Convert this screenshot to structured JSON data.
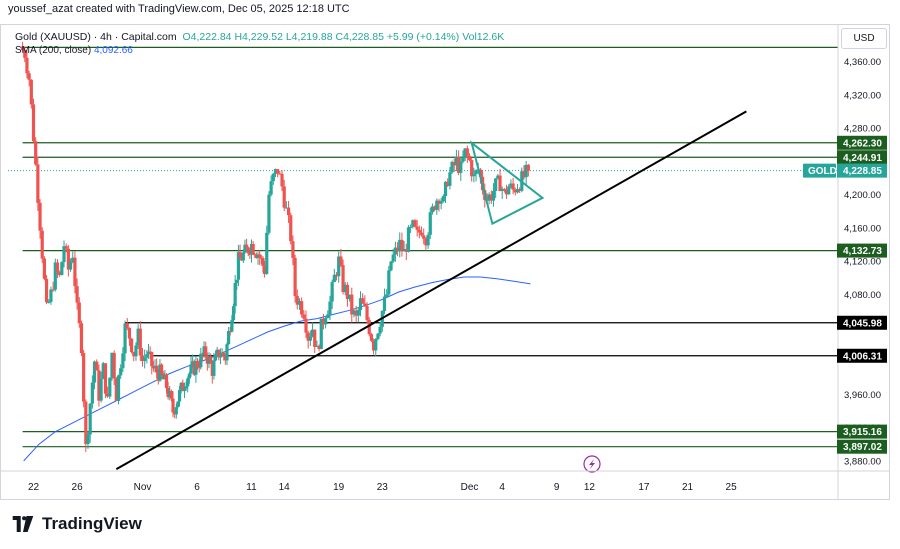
{
  "header": {
    "attribution": "youssef_azat created with TradingView.com, Dec 05, 2025 12:18 UTC"
  },
  "legend": {
    "symbol": "Gold (XAUUSD) · 4h · Capital.com",
    "o": "O4,222.84",
    "h": "H4,229.52",
    "l": "L4,219.88",
    "c": "C4,228.85",
    "change": "+5.99 (+0.14%)",
    "vol": "Vol12.6K",
    "sma_label": "SMA (200, close)",
    "sma_value": "4,092.66"
  },
  "currency": "USD",
  "footer": {
    "brand": "TradingView"
  },
  "chart_data": {
    "type": "candlestick",
    "symbol": "Gold (XAUUSD)",
    "timeframe": "4h",
    "currency": "USD",
    "ylim": [
      3860,
      4390
    ],
    "y_ticks": [
      "4,360.00",
      "4,320.00",
      "4,280.00",
      "4,240.00",
      "4,200.00",
      "4,160.00",
      "4,120.00",
      "4,080.00",
      "3,960.00",
      "3,920.00",
      "3,880.00"
    ],
    "y_tick_values": [
      4360,
      4320,
      4280,
      4240,
      4200,
      4160,
      4120,
      4080,
      3960,
      3920,
      3880
    ],
    "x_ticks": [
      {
        "label": "22",
        "day": 22
      },
      {
        "label": "26",
        "day": 26
      },
      {
        "label": "Nov",
        "day": 32
      },
      {
        "label": "6",
        "day": 37
      },
      {
        "label": "11",
        "day": 42
      },
      {
        "label": "14",
        "day": 45
      },
      {
        "label": "19",
        "day": 50
      },
      {
        "label": "23",
        "day": 54
      },
      {
        "label": "Dec",
        "day": 62
      },
      {
        "label": "4",
        "day": 65
      },
      {
        "label": "9",
        "day": 70
      },
      {
        "label": "12",
        "day": 73
      },
      {
        "label": "17",
        "day": 78
      },
      {
        "label": "21",
        "day": 82
      },
      {
        "label": "25",
        "day": 86
      }
    ],
    "current_price": {
      "label": "GOLD",
      "value": 4228.85,
      "text": "4,228.85"
    },
    "levels": [
      {
        "value": 4377,
        "text": "",
        "color": "#1b5e20",
        "x_start_day": 21
      },
      {
        "value": 4262.3,
        "text": "4,262.30",
        "color": "#1b5e20",
        "x_start_day": 21
      },
      {
        "value": 4244.91,
        "text": "4,244.91",
        "color": "#1b5e20",
        "x_start_day": 21
      },
      {
        "value": 4132.73,
        "text": "4,132.73",
        "color": "#1b5e20",
        "x_start_day": 21
      },
      {
        "value": 4045.98,
        "text": "4,045.98",
        "color": "#000000",
        "x_start_day": 30.4
      },
      {
        "value": 4006.31,
        "text": "4,006.31",
        "color": "#000000",
        "x_start_day": 33
      },
      {
        "value": 3915.16,
        "text": "3,915.16",
        "color": "#1b5e20",
        "x_start_day": 21
      },
      {
        "value": 3897.02,
        "text": "3,897.02",
        "color": "#1b5e20",
        "x_start_day": 21
      }
    ],
    "trendline": {
      "from": {
        "day": 29.6,
        "price": 3870
      },
      "to": {
        "day": 87.4,
        "price": 4300
      },
      "color": "#000000"
    },
    "triangle": {
      "points": [
        {
          "day": 62.2,
          "price": 4262
        },
        {
          "day": 64.1,
          "price": 4165
        },
        {
          "day": 68.7,
          "price": 4196
        }
      ],
      "color": "#26a69a"
    },
    "candle_path": [
      [
        20.8,
        4378
      ],
      [
        21.2,
        4370
      ],
      [
        21.6,
        4340
      ],
      [
        22.0,
        4270
      ],
      [
        22.4,
        4200
      ],
      [
        22.8,
        4130
      ],
      [
        23.2,
        4060
      ],
      [
        23.6,
        4080
      ],
      [
        24.0,
        4110
      ],
      [
        24.4,
        4100
      ],
      [
        24.8,
        4140
      ],
      [
        25.2,
        4110
      ],
      [
        25.6,
        4130
      ],
      [
        26.0,
        4060
      ],
      [
        26.4,
        4020
      ],
      [
        26.8,
        3895
      ],
      [
        27.2,
        3950
      ],
      [
        27.6,
        4000
      ],
      [
        28.0,
        3960
      ],
      [
        28.4,
        3990
      ],
      [
        28.8,
        3950
      ],
      [
        29.2,
        4010
      ],
      [
        29.6,
        3960
      ],
      [
        30.0,
        4000
      ],
      [
        30.4,
        4040
      ],
      [
        30.8,
        4030
      ],
      [
        31.2,
        4010
      ],
      [
        31.6,
        4030
      ],
      [
        32.0,
        4000
      ],
      [
        32.4,
        4010
      ],
      [
        33.0,
        3990
      ],
      [
        33.6,
        3985
      ],
      [
        34.2,
        3970
      ],
      [
        34.8,
        3940
      ],
      [
        35.4,
        3960
      ],
      [
        36.0,
        3980
      ],
      [
        36.6,
        3990
      ],
      [
        37.2,
        4000
      ],
      [
        37.8,
        4010
      ],
      [
        38.4,
        3990
      ],
      [
        39.0,
        4010
      ],
      [
        39.6,
        4005
      ],
      [
        40.2,
        4060
      ],
      [
        40.8,
        4120
      ],
      [
        41.4,
        4130
      ],
      [
        42.0,
        4140
      ],
      [
        42.6,
        4130
      ],
      [
        43.2,
        4110
      ],
      [
        43.6,
        4200
      ],
      [
        44.0,
        4220
      ],
      [
        44.4,
        4230
      ],
      [
        44.8,
        4210
      ],
      [
        45.2,
        4180
      ],
      [
        45.6,
        4150
      ],
      [
        46.0,
        4080
      ],
      [
        46.4,
        4070
      ],
      [
        46.8,
        4060
      ],
      [
        47.2,
        4030
      ],
      [
        47.6,
        4040
      ],
      [
        48.0,
        4010
      ],
      [
        48.4,
        4040
      ],
      [
        48.8,
        4060
      ],
      [
        49.2,
        4070
      ],
      [
        49.6,
        4100
      ],
      [
        50.0,
        4120
      ],
      [
        50.4,
        4090
      ],
      [
        50.8,
        4080
      ],
      [
        51.2,
        4060
      ],
      [
        51.6,
        4050
      ],
      [
        52.0,
        4070
      ],
      [
        52.4,
        4060
      ],
      [
        52.8,
        4040
      ],
      [
        53.2,
        4020
      ],
      [
        53.6,
        4040
      ],
      [
        54.0,
        4060
      ],
      [
        54.4,
        4080
      ],
      [
        54.8,
        4120
      ],
      [
        55.2,
        4130
      ],
      [
        55.6,
        4140
      ],
      [
        56.0,
        4130
      ],
      [
        56.4,
        4150
      ],
      [
        56.8,
        4160
      ],
      [
        57.2,
        4150
      ],
      [
        57.6,
        4160
      ],
      [
        58.0,
        4150
      ],
      [
        58.4,
        4170
      ],
      [
        58.8,
        4190
      ],
      [
        59.2,
        4200
      ],
      [
        59.6,
        4190
      ],
      [
        60.0,
        4220
      ],
      [
        60.4,
        4230
      ],
      [
        60.8,
        4240
      ],
      [
        61.2,
        4230
      ],
      [
        61.6,
        4250
      ],
      [
        62.0,
        4240
      ],
      [
        62.4,
        4220
      ],
      [
        62.8,
        4230
      ],
      [
        63.2,
        4210
      ],
      [
        63.6,
        4195
      ],
      [
        64.0,
        4200
      ],
      [
        64.4,
        4210
      ],
      [
        64.8,
        4215
      ],
      [
        65.2,
        4200
      ],
      [
        65.6,
        4210
      ],
      [
        66.0,
        4205
      ],
      [
        66.4,
        4212
      ],
      [
        66.8,
        4218
      ],
      [
        67.2,
        4225
      ],
      [
        67.4,
        4228.85
      ]
    ],
    "sma_path": [
      [
        21.1,
        3880
      ],
      [
        22.5,
        3900
      ],
      [
        24.0,
        3915
      ],
      [
        25.5,
        3925
      ],
      [
        27.0,
        3935
      ],
      [
        28.5,
        3945
      ],
      [
        30.0,
        3955
      ],
      [
        31.5,
        3965
      ],
      [
        33.0,
        3975
      ],
      [
        34.5,
        3985
      ],
      [
        36.0,
        3993
      ],
      [
        37.5,
        4000
      ],
      [
        39.0,
        4008
      ],
      [
        40.5,
        4017
      ],
      [
        42.0,
        4026
      ],
      [
        43.5,
        4035
      ],
      [
        45.0,
        4042
      ],
      [
        46.5,
        4048
      ],
      [
        48.0,
        4051
      ],
      [
        49.5,
        4056
      ],
      [
        51.0,
        4061
      ],
      [
        52.5,
        4067
      ],
      [
        54.0,
        4074
      ],
      [
        55.5,
        4083
      ],
      [
        57.0,
        4089
      ],
      [
        58.5,
        4094
      ],
      [
        60.0,
        4098
      ],
      [
        61.5,
        4101
      ],
      [
        63.0,
        4101
      ],
      [
        64.5,
        4099
      ],
      [
        66.0,
        4096
      ],
      [
        67.6,
        4092.66
      ]
    ]
  }
}
